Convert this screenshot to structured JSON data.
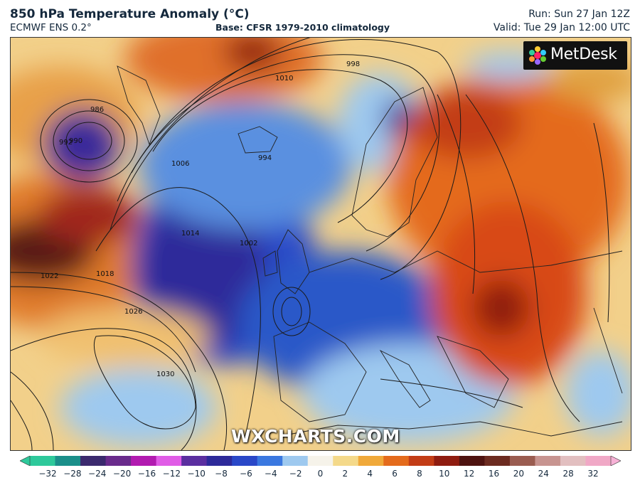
{
  "header": {
    "title": "850 hPa Temperature Anomaly (°C)",
    "model": "ECMWF ENS 0.2°",
    "base": "Base: CFSR 1979-2010 climatology",
    "run": "Run: Sun 27 Jan 12Z",
    "valid": "Valid: Tue 29 Jan 12:00 UTC"
  },
  "logo": {
    "text": "MetDesk"
  },
  "watermark": "WXCHARTS.COM",
  "isobars": {
    "unit": "hPa",
    "labels": [
      "986",
      "990",
      "992",
      "994",
      "998",
      "1002",
      "1006",
      "1010",
      "1014",
      "1018",
      "1022",
      "1026",
      "1030"
    ]
  },
  "colorbar": {
    "ticks": [
      "−32",
      "−28",
      "−24",
      "−20",
      "−16",
      "−12",
      "−10",
      "−8",
      "−6",
      "−4",
      "−2",
      "0",
      "2",
      "4",
      "6",
      "8",
      "10",
      "12",
      "16",
      "20",
      "24",
      "28",
      "32"
    ],
    "colors": [
      "#2ec99b",
      "#1b8f8a",
      "#3b2a6e",
      "#6a2b8c",
      "#b21bb0",
      "#e05ce6",
      "#5b2fa0",
      "#2d2a9a",
      "#2a48c8",
      "#3b78e0",
      "#9ec9ef",
      "#f6f3ea",
      "#f4d98a",
      "#f0a93a",
      "#e46b1c",
      "#c33d16",
      "#8f1c10",
      "#4e1310",
      "#6c2b20",
      "#9a5c50",
      "#c79490",
      "#e2bfc0",
      "#f0a8c6"
    ],
    "min_marker_color": "#2ec99b",
    "max_marker_color": "#f7b1d6"
  }
}
